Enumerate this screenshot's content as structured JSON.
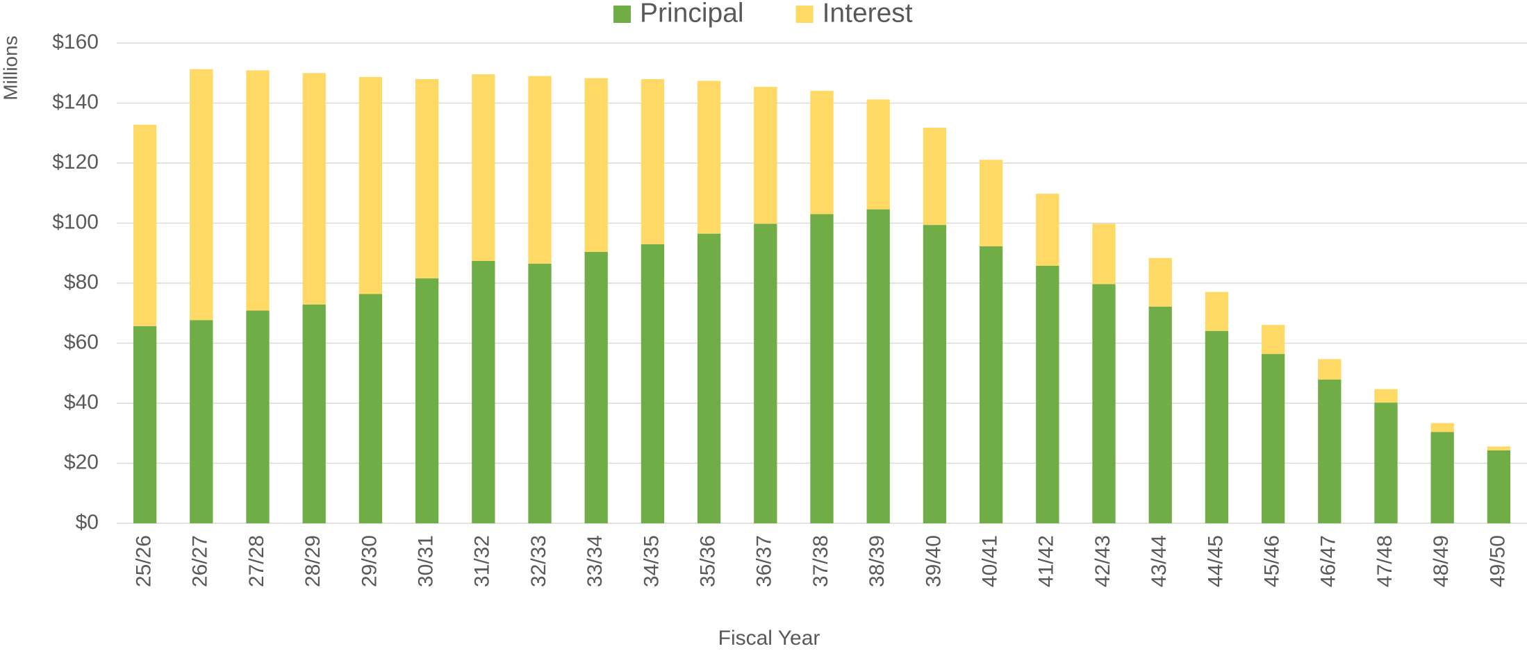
{
  "chart_data": {
    "type": "bar",
    "stacked": true,
    "x_label": "Fiscal Year",
    "y_label": "Millions",
    "categories": [
      "25/26",
      "26/27",
      "27/28",
      "28/29",
      "29/30",
      "30/31",
      "31/32",
      "32/33",
      "33/34",
      "34/35",
      "35/36",
      "36/37",
      "37/38",
      "38/39",
      "39/40",
      "40/41",
      "41/42",
      "42/43",
      "43/44",
      "44/45",
      "45/46",
      "46/47",
      "47/48",
      "48/49",
      "49/50"
    ],
    "series": [
      {
        "name": "Principal",
        "color": "#70ad47",
        "values": [
          65.7,
          67.7,
          70.9,
          72.9,
          76.4,
          81.6,
          87.4,
          86.5,
          90.4,
          93.0,
          96.5,
          99.8,
          103.0,
          104.6,
          99.4,
          92.3,
          85.8,
          79.7,
          72.2,
          64.1,
          56.4,
          47.9,
          40.2,
          30.4,
          24.3
        ]
      },
      {
        "name": "Interest",
        "color": "#ffd966",
        "values": [
          67.1,
          83.6,
          80.0,
          77.1,
          72.3,
          66.4,
          62.2,
          62.5,
          57.9,
          55.0,
          50.9,
          45.6,
          41.1,
          36.6,
          32.4,
          28.8,
          24.0,
          20.1,
          16.2,
          13.0,
          9.7,
          6.8,
          4.5,
          3.0,
          1.3
        ]
      }
    ],
    "ylim": [
      0,
      160
    ],
    "yticks": [
      {
        "value": 0,
        "label": "$0"
      },
      {
        "value": 20,
        "label": "$20"
      },
      {
        "value": 40,
        "label": "$40"
      },
      {
        "value": 60,
        "label": "$60"
      },
      {
        "value": 80,
        "label": "$80"
      },
      {
        "value": 100,
        "label": "$100"
      },
      {
        "value": 120,
        "label": "$120"
      },
      {
        "value": 140,
        "label": "$140"
      },
      {
        "value": 160,
        "label": "$160"
      }
    ],
    "grid": true,
    "legend": "top"
  }
}
